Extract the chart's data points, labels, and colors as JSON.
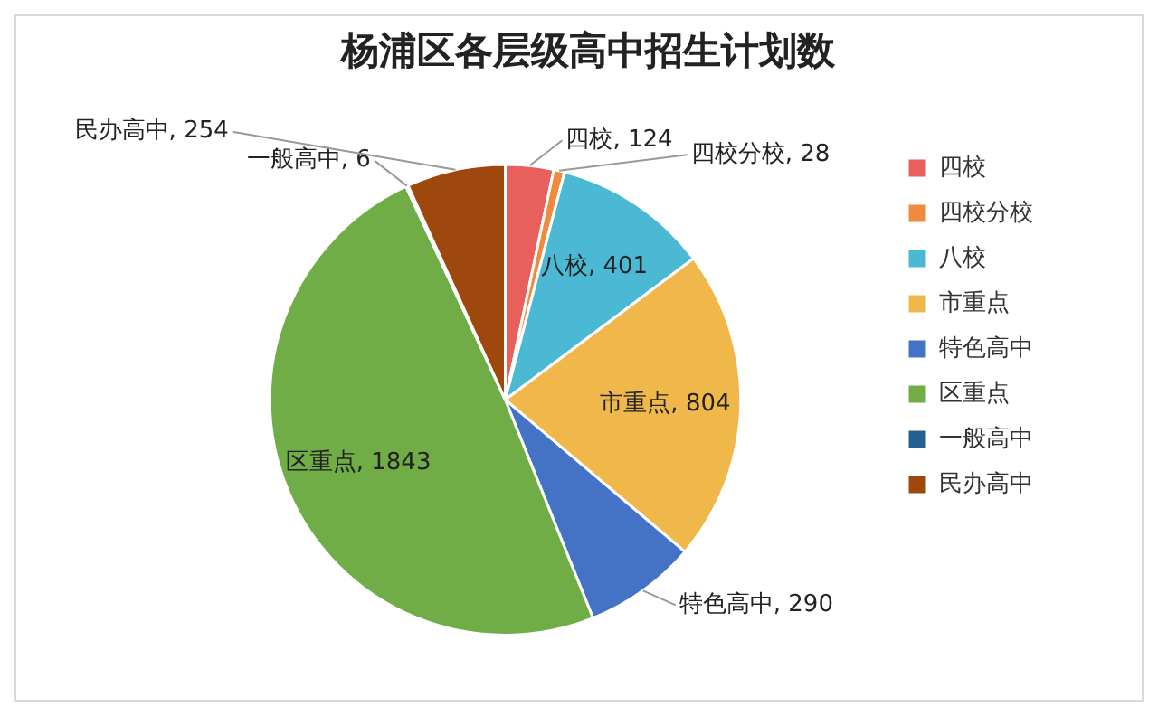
{
  "chart_data": {
    "type": "pie",
    "title": "杨浦区各层级高中招生计划数",
    "categories": [
      "四校",
      "四校分校",
      "八校",
      "市重点",
      "特色高中",
      "区重点",
      "一般高中",
      "民办高中"
    ],
    "values": [
      124,
      28,
      401,
      804,
      290,
      1843,
      6,
      254
    ],
    "colors": [
      "#e8605c",
      "#f08a3c",
      "#4bb8d4",
      "#f0b84a",
      "#4472c4",
      "#70ad47",
      "#255e91",
      "#9e480e"
    ],
    "value_labels": [
      "四校, 124",
      "四校分校, 28",
      "八校, 401",
      "市重点, 804",
      "特色高中, 290",
      "区重点, 1843",
      "一般高中, 6",
      "民办高中, 254"
    ],
    "legend": "right"
  }
}
